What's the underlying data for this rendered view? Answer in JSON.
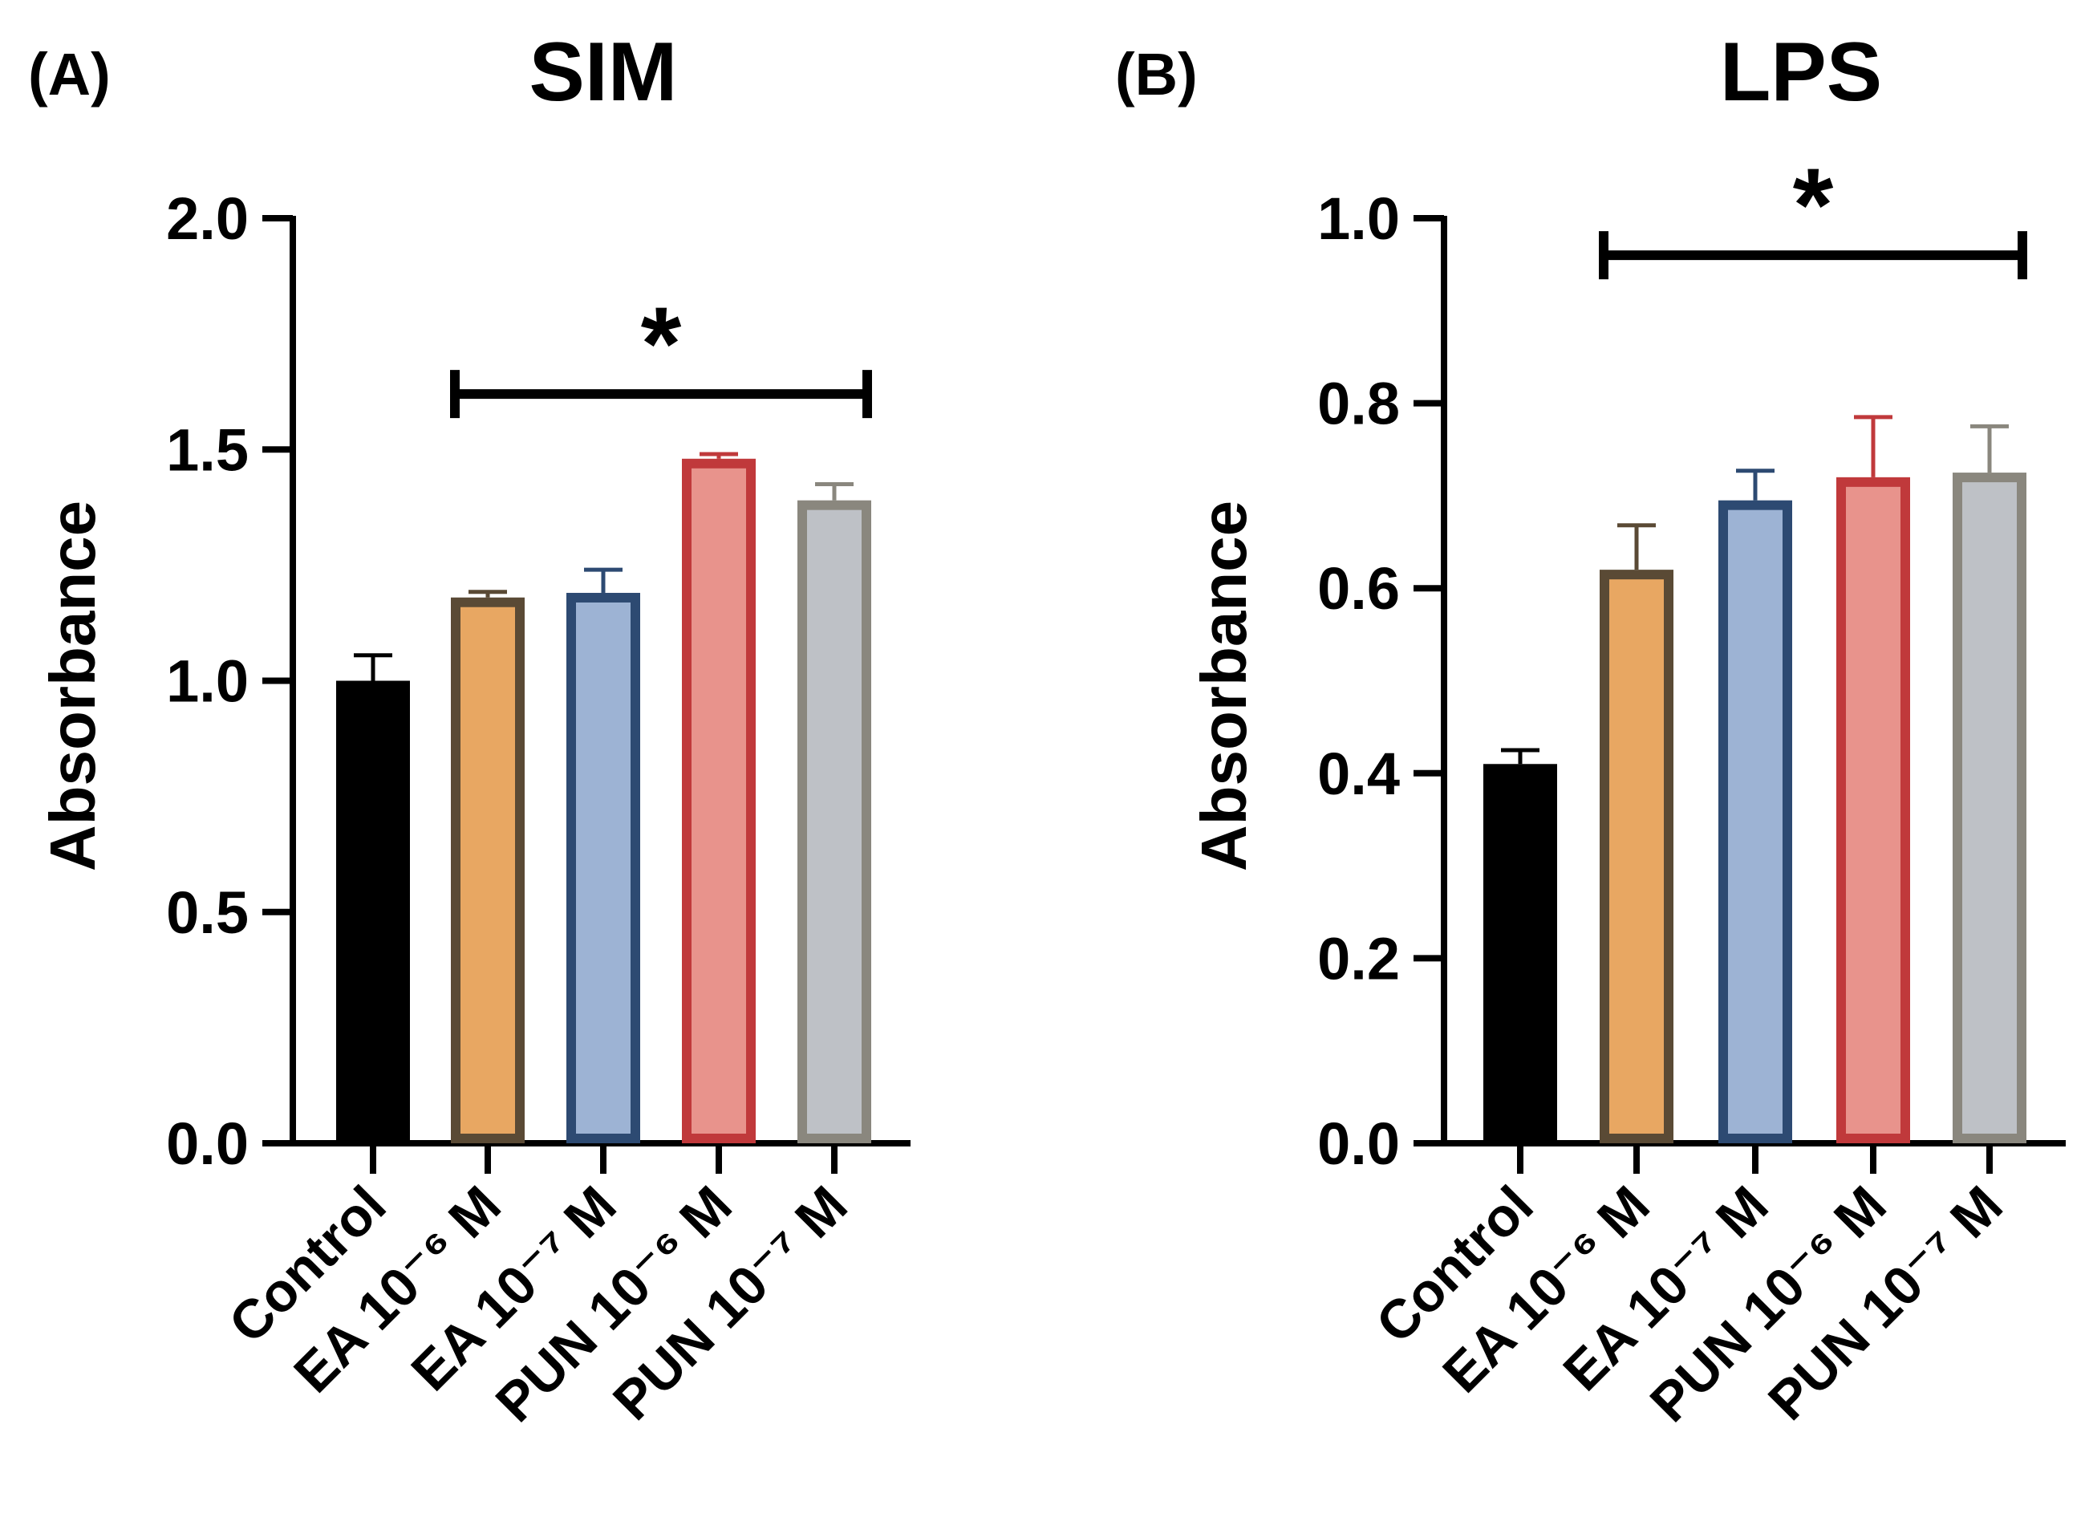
{
  "chart_data": [
    {
      "type": "bar",
      "panel_label": "(A)",
      "title": "SIM",
      "ylabel": "Absorbance",
      "xlabel": "",
      "ylim": [
        0,
        2.0
      ],
      "yticks": [
        0.0,
        0.5,
        1.0,
        1.5,
        2.0
      ],
      "ytick_labels": [
        "0.0",
        "0.5",
        "1.0",
        "1.5",
        "2.0"
      ],
      "categories": [
        "Control",
        "EA 10⁻⁶ M",
        "EA 10⁻⁷ M",
        "PUN 10⁻⁶ M",
        "PUN 10⁻⁷ M"
      ],
      "values": [
        1.0,
        1.18,
        1.19,
        1.48,
        1.39
      ],
      "errors": [
        0.055,
        0.012,
        0.05,
        0.01,
        0.035
      ],
      "fill_colors": [
        "#000000",
        "#E8A762",
        "#9DB3D4",
        "#E8938C",
        "#BEC1C6"
      ],
      "edge_colors": [
        "#000000",
        "#5A4A35",
        "#2D4A72",
        "#C0393B",
        "#8A877E"
      ],
      "significance": {
        "label": "*",
        "from": 1,
        "to": 4,
        "y": 1.62
      }
    },
    {
      "type": "bar",
      "panel_label": "(B)",
      "title": "LPS",
      "ylabel": "Absorbance",
      "xlabel": "",
      "ylim": [
        0,
        1.0
      ],
      "yticks": [
        0.0,
        0.2,
        0.4,
        0.6,
        0.8,
        1.0
      ],
      "ytick_labels": [
        "0.0",
        "0.2",
        "0.4",
        "0.6",
        "0.8",
        "1.0"
      ],
      "categories": [
        "Control",
        "EA 10⁻⁶ M",
        "EA 10⁻⁷ M",
        "PUN 10⁻⁶ M",
        "PUN 10⁻⁷ M"
      ],
      "values": [
        0.41,
        0.62,
        0.695,
        0.72,
        0.725
      ],
      "errors": [
        0.015,
        0.048,
        0.032,
        0.065,
        0.05
      ],
      "fill_colors": [
        "#000000",
        "#E8A762",
        "#9DB3D4",
        "#E8938C",
        "#BEC1C6"
      ],
      "edge_colors": [
        "#000000",
        "#5A4A35",
        "#2D4A72",
        "#C0393B",
        "#8A877E"
      ],
      "significance": {
        "label": "*",
        "from": 1,
        "to": 4,
        "y": 0.96
      }
    }
  ]
}
